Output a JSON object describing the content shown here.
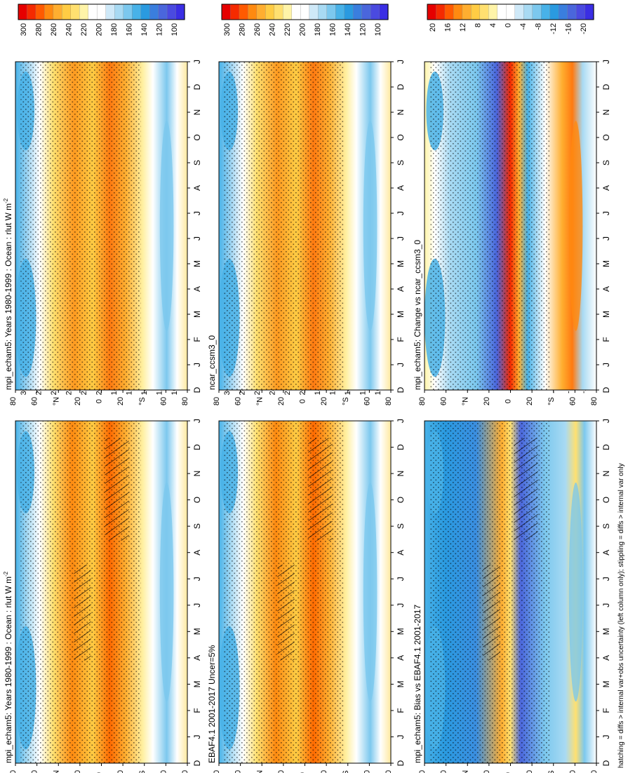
{
  "figure": {
    "footer_note": "hatching = diffs > internal var+obs uncertainty (left column only); stippling = diffs > internal var only"
  },
  "chart_data": [
    {
      "type": "heatmap",
      "id": "p_model_left",
      "title": "mpi_echam5: Years 1980-1999 : Ocean : rlut W m",
      "title_superscript": "-2",
      "x_tick_labels": [
        "D",
        "J",
        "F",
        "M",
        "A",
        "M",
        "J",
        "J",
        "A",
        "S",
        "O",
        "N",
        "D",
        "J"
      ],
      "y_tick_labels": [
        "80",
        "60",
        "°N",
        "20",
        "0",
        "20",
        "°S",
        "60",
        "80"
      ],
      "colorbar_labels": [
        "300",
        "280",
        "260",
        "240",
        "220",
        "200",
        "180",
        "160",
        "140",
        "120",
        "100"
      ],
      "colorbar_colors": [
        "#e60000",
        "#f52a00",
        "#ff5a00",
        "#ff8a10",
        "#ffae30",
        "#ffcc44",
        "#ffe070",
        "#fff4a8",
        "#ffffff",
        "#ffffff",
        "#cfe9f8",
        "#a8daf3",
        "#7cc8ee",
        "#48b2e8",
        "#2a9ae0",
        "#3a7ede",
        "#4a66dc",
        "#4a4ae0",
        "#3a2ee4"
      ],
      "hatched_bands": [
        "Jan-May 0 to 25S",
        "Jun-Oct 10N to 30N"
      ]
    },
    {
      "type": "heatmap",
      "id": "p_model_right",
      "title": "mpi_echam5: Years 1980-1999 : Ocean : rlut W m",
      "title_superscript": "-2",
      "x_tick_labels": [
        "D",
        "J",
        "F",
        "M",
        "A",
        "M",
        "J",
        "J",
        "A",
        "S",
        "O",
        "N",
        "D",
        "J"
      ],
      "y_tick_labels": [
        "80",
        "60",
        "°N",
        "20",
        "0",
        "20",
        "°S",
        "60",
        "80"
      ],
      "colorbar_labels": [
        "300",
        "280",
        "260",
        "240",
        "220",
        "200",
        "180",
        "160",
        "140",
        "120",
        "100"
      ],
      "colorbar_colors": [
        "#e60000",
        "#f52a00",
        "#ff5a00",
        "#ff8a10",
        "#ffae30",
        "#ffcc44",
        "#ffe070",
        "#fff4a8",
        "#ffffff",
        "#ffffff",
        "#cfe9f8",
        "#a8daf3",
        "#7cc8ee",
        "#48b2e8",
        "#2a9ae0",
        "#3a7ede",
        "#4a66dc",
        "#4a4ae0",
        "#3a2ee4"
      ]
    },
    {
      "type": "heatmap",
      "id": "p_obs",
      "title": "EBAF4.1 2001-2017 Uncer=5%",
      "x_tick_labels": [
        "D",
        "J",
        "F",
        "M",
        "A",
        "M",
        "J",
        "J",
        "A",
        "S",
        "O",
        "N",
        "D",
        "J"
      ],
      "y_tick_labels": [
        "80",
        "60",
        "°N",
        "20",
        "0",
        "20",
        "°S",
        "60",
        "80"
      ],
      "colorbar_labels": [
        "300",
        "280",
        "260",
        "240",
        "220",
        "200",
        "180",
        "160",
        "140",
        "120",
        "100"
      ],
      "colorbar_colors": [
        "#e60000",
        "#f52a00",
        "#ff5a00",
        "#ff8a10",
        "#ffae30",
        "#ffcc44",
        "#ffe070",
        "#fff4a8",
        "#ffffff",
        "#ffffff",
        "#cfe9f8",
        "#a8daf3",
        "#7cc8ee",
        "#48b2e8",
        "#2a9ae0",
        "#3a7ede",
        "#4a66dc",
        "#4a4ae0",
        "#3a2ee4"
      ],
      "hatched_bands": [
        "Jan-May 0 to 25S",
        "Jun-Oct 10N to 30N"
      ]
    },
    {
      "type": "heatmap",
      "id": "p_ncar",
      "title": "ncar_ccsm3_0",
      "x_tick_labels": [
        "D",
        "J",
        "F",
        "M",
        "A",
        "M",
        "J",
        "J",
        "A",
        "S",
        "O",
        "N",
        "D",
        "J"
      ],
      "y_tick_labels": [
        "80",
        "60",
        "°N",
        "20",
        "0",
        "20",
        "°S",
        "60",
        "80"
      ],
      "colorbar_labels": [
        "300",
        "280",
        "260",
        "240",
        "220",
        "200",
        "180",
        "160",
        "140",
        "120",
        "100"
      ],
      "colorbar_colors": [
        "#e60000",
        "#f52a00",
        "#ff5a00",
        "#ff8a10",
        "#ffae30",
        "#ffcc44",
        "#ffe070",
        "#fff4a8",
        "#ffffff",
        "#ffffff",
        "#cfe9f8",
        "#a8daf3",
        "#7cc8ee",
        "#48b2e8",
        "#2a9ae0",
        "#3a7ede",
        "#4a66dc",
        "#4a4ae0",
        "#3a2ee4"
      ]
    },
    {
      "type": "heatmap",
      "id": "p_bias",
      "title": "mpi_echam5: Bias vs EBAF4.1 2001-2017",
      "x_tick_labels": [
        "D",
        "J",
        "F",
        "M",
        "A",
        "M",
        "J",
        "J",
        "A",
        "S",
        "O",
        "N",
        "D",
        "J"
      ],
      "y_tick_labels": [
        "80",
        "60",
        "°N",
        "20",
        "0",
        "20",
        "°S",
        "60",
        "80"
      ],
      "colorbar_labels": [
        "20",
        "16",
        "12",
        "8",
        "4",
        "0",
        "-4",
        "-8",
        "-12",
        "-16",
        "-20"
      ],
      "colorbar_colors": [
        "#e60000",
        "#f52a00",
        "#ff5a00",
        "#ff8a10",
        "#ffae30",
        "#ffcc44",
        "#ffe070",
        "#fff4a8",
        "#ffffff",
        "#ffffff",
        "#cfe9f8",
        "#a8daf3",
        "#7cc8ee",
        "#48b2e8",
        "#2a9ae0",
        "#3a7ede",
        "#4a66dc",
        "#4a4ae0",
        "#3a2ee4"
      ],
      "hatched_bands": [
        "Jan-May 5S to 25S",
        "Jun-Oct 10N to 25N"
      ]
    },
    {
      "type": "heatmap",
      "id": "p_change",
      "title": "mpi_echam5: Change vs ncar_ccsm3_0",
      "x_tick_labels": [
        "D",
        "J",
        "F",
        "M",
        "A",
        "M",
        "J",
        "J",
        "A",
        "S",
        "O",
        "N",
        "D",
        "J"
      ],
      "y_tick_labels": [
        "80",
        "60",
        "°N",
        "20",
        "0",
        "20",
        "°S",
        "60",
        "80"
      ],
      "colorbar_labels": [
        "20",
        "16",
        "12",
        "8",
        "4",
        "0",
        "-4",
        "-8",
        "-12",
        "-16",
        "-20"
      ],
      "colorbar_colors": [
        "#e60000",
        "#f52a00",
        "#ff5a00",
        "#ff8a10",
        "#ffae30",
        "#ffcc44",
        "#ffe070",
        "#fff4a8",
        "#ffffff",
        "#ffffff",
        "#cfe9f8",
        "#a8daf3",
        "#7cc8ee",
        "#48b2e8",
        "#2a9ae0",
        "#3a7ede",
        "#4a66dc",
        "#4a4ae0",
        "#3a2ee4"
      ]
    }
  ]
}
